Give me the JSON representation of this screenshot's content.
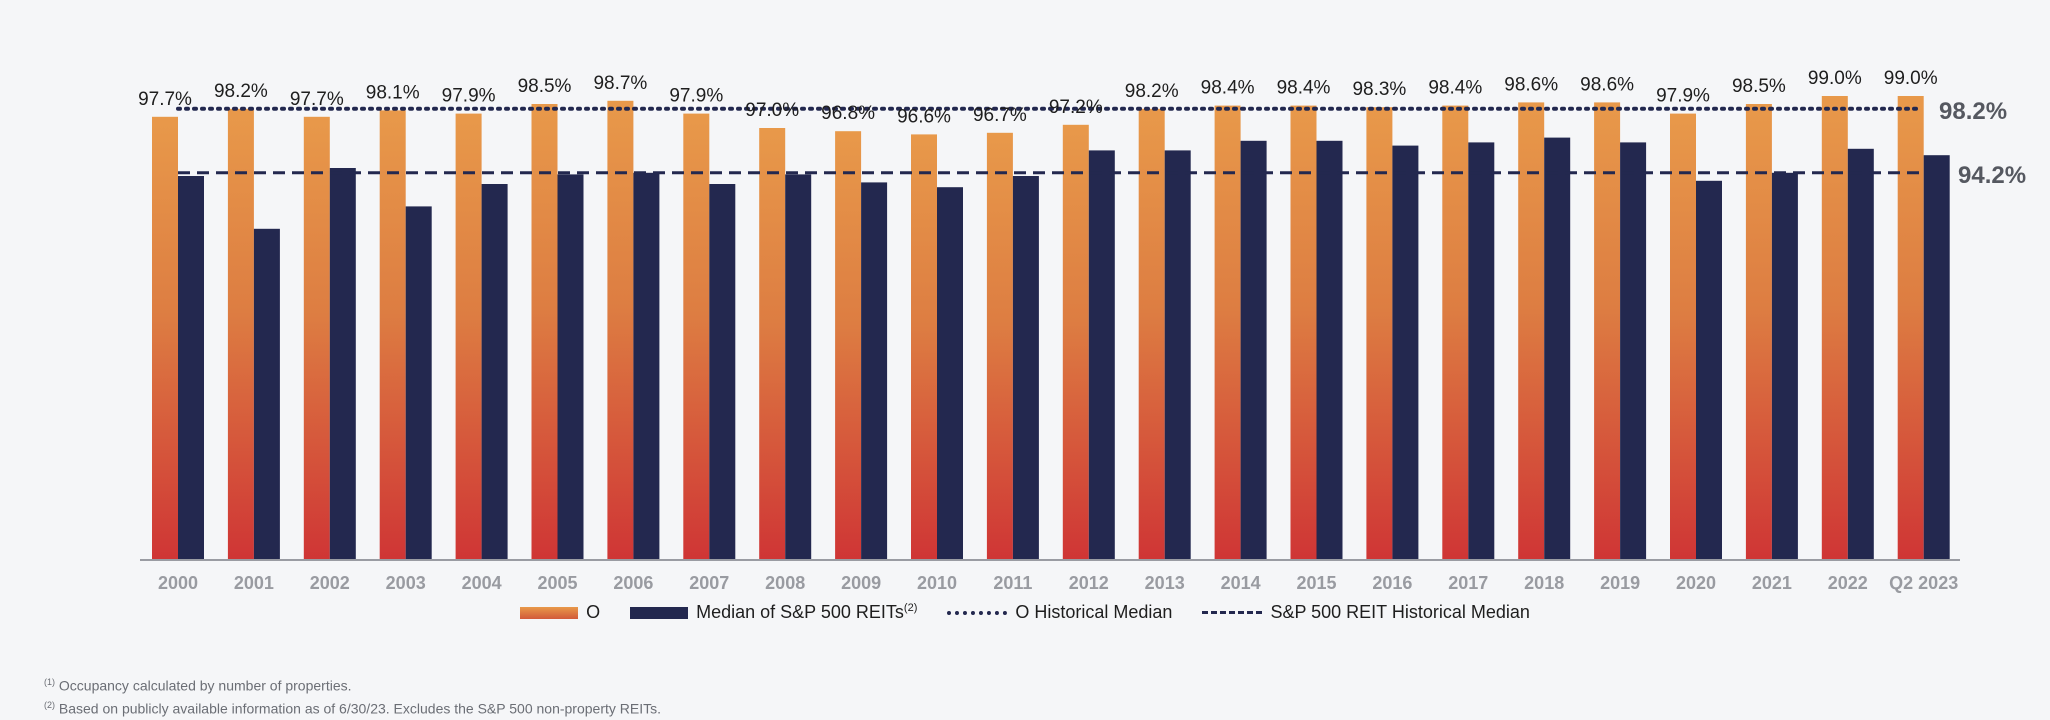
{
  "chart_data": {
    "type": "bar",
    "categories": [
      "2000",
      "2001",
      "2002",
      "2003",
      "2004",
      "2005",
      "2006",
      "2007",
      "2008",
      "2009",
      "2010",
      "2011",
      "2012",
      "2013",
      "2014",
      "2015",
      "2016",
      "2017",
      "2018",
      "2019",
      "2020",
      "2021",
      "2022",
      "Q2 2023"
    ],
    "series": [
      {
        "name": "O",
        "values": [
          97.7,
          98.2,
          97.7,
          98.1,
          97.9,
          98.5,
          98.7,
          97.9,
          97.0,
          96.8,
          96.6,
          96.7,
          97.2,
          98.2,
          98.4,
          98.4,
          98.3,
          98.4,
          98.6,
          98.6,
          97.9,
          98.5,
          99.0,
          99.0
        ],
        "labels": [
          "97.7%",
          "98.2%",
          "97.7%",
          "98.1%",
          "97.9%",
          "98.5%",
          "98.7%",
          "97.9%",
          "97.0%",
          "96.8%",
          "96.6%",
          "96.7%",
          "97.2%",
          "98.2%",
          "98.4%",
          "98.4%",
          "98.3%",
          "98.4%",
          "98.6%",
          "98.6%",
          "97.9%",
          "98.5%",
          "99.0%",
          "99.0%"
        ]
      },
      {
        "name": "Median of S&P 500 REITs",
        "name_sup": "(2)",
        "values": [
          94.0,
          90.7,
          94.5,
          92.1,
          93.5,
          94.1,
          94.2,
          93.5,
          94.1,
          93.6,
          93.3,
          94.0,
          95.6,
          95.6,
          96.2,
          96.2,
          95.9,
          96.1,
          96.4,
          96.1,
          93.7,
          94.2,
          95.7,
          95.3
        ]
      }
    ],
    "reference_lines": [
      {
        "name": "O Historical Median",
        "value": 98.2,
        "label": "98.2%",
        "style": "dotted"
      },
      {
        "name": "S&P 500 REIT Historical Median",
        "value": 94.2,
        "label": "94.2%",
        "style": "dashed"
      }
    ],
    "ylim": [
      70,
      101
    ],
    "grid": false,
    "legend_position": "bottom",
    "colors": {
      "o_top": "#e8994a",
      "o_bottom": "#cf3535",
      "reit": "#23284f",
      "axis": "#9a9ca3"
    }
  },
  "footnotes": {
    "fn1_sup": "(1)",
    "fn1": "Occupancy calculated by number of properties.",
    "fn2_sup": "(2)",
    "fn2": "Based on publicly available information as of 6/30/23. Excludes the S&P 500 non-property REITs."
  }
}
